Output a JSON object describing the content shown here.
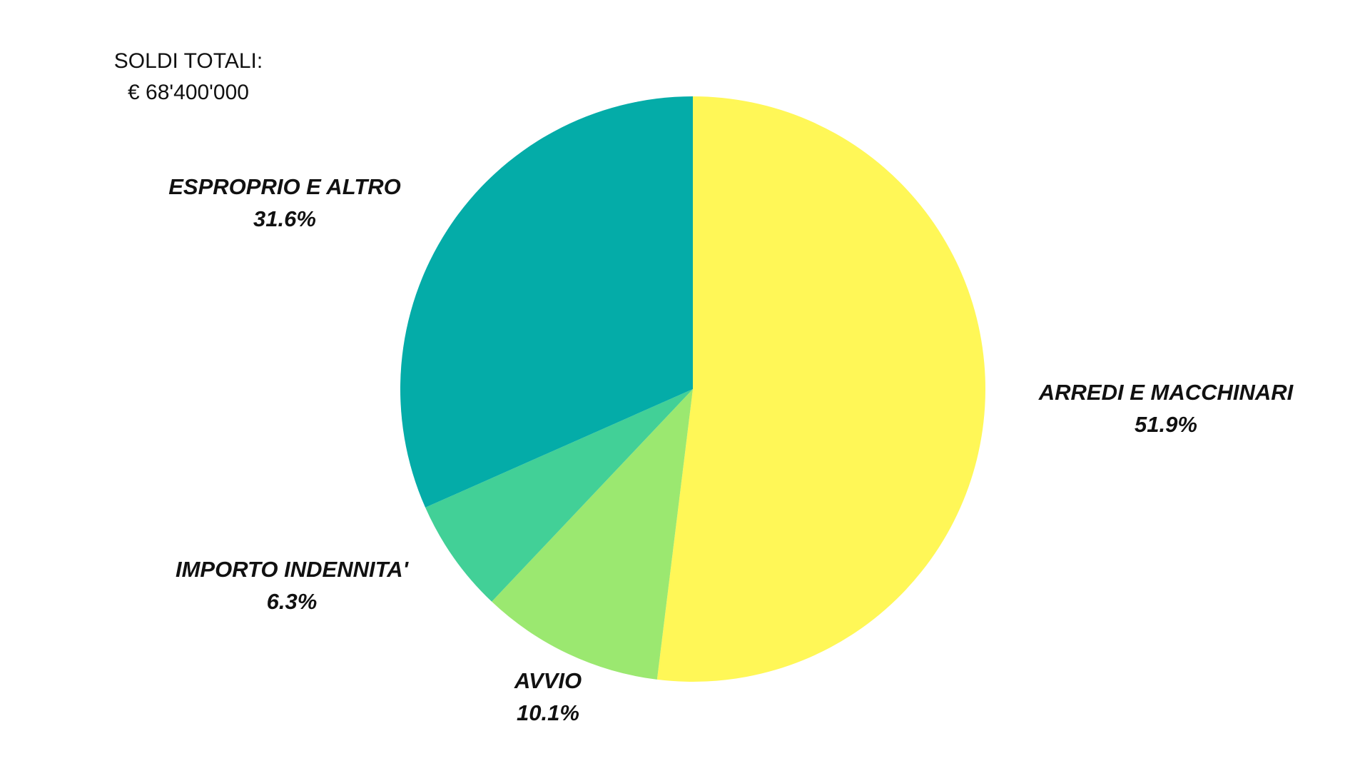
{
  "chart_data": {
    "type": "pie",
    "annotations": [
      "SOLDI TOTALI:",
      "€ 68'400'000"
    ],
    "categories": [
      "ARREDI E MACCHINARI",
      "AVVIO",
      "IMPORTO INDENNITA'",
      "ESPROPRIO E ALTRO"
    ],
    "values": [
      51.9,
      10.1,
      6.3,
      31.6
    ],
    "value_labels": [
      "51.9%",
      "10.1%",
      "6.3%",
      "31.6%"
    ],
    "colors": [
      "#fff757",
      "#9be870",
      "#42d097",
      "#04aca8"
    ]
  }
}
